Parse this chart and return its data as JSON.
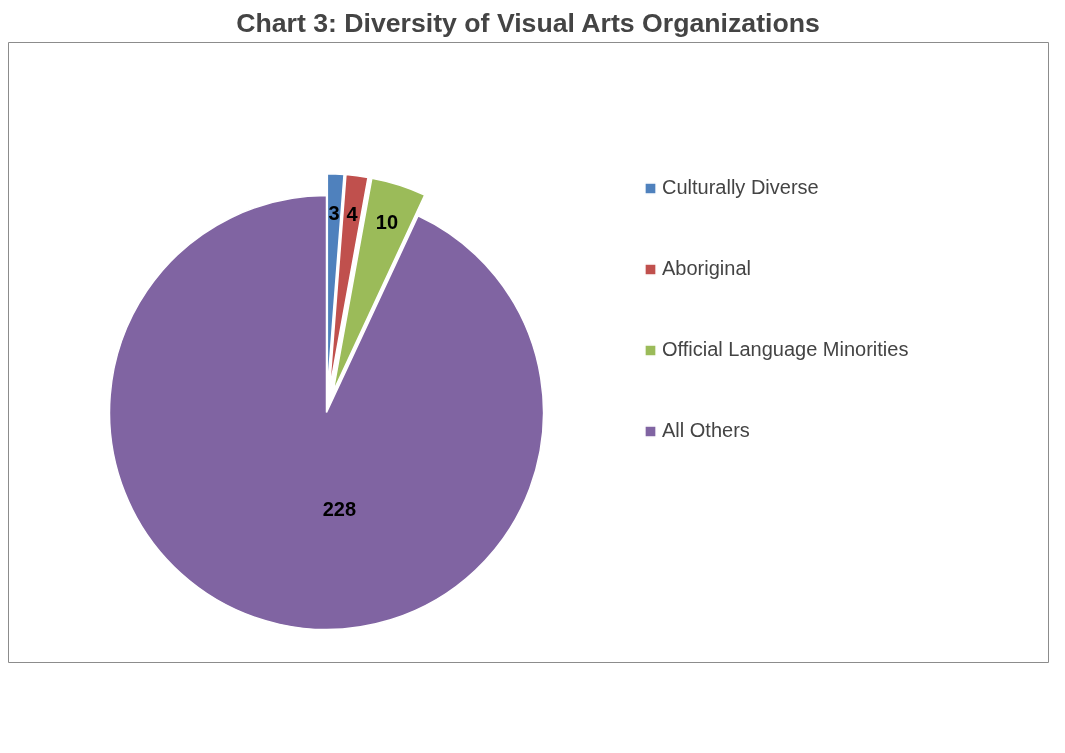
{
  "chart_data": {
    "type": "pie",
    "title": "Chart 3: Diversity of Visual Arts Organizations",
    "categories": [
      "Culturally Diverse",
      "Aboriginal",
      "Official Language Minorities",
      "All Others"
    ],
    "values": [
      3,
      4,
      10,
      228
    ],
    "colors": [
      "#4f81bd",
      "#c0504d",
      "#9bbb59",
      "#8064a2"
    ],
    "data_labels": true,
    "legend": "right"
  }
}
